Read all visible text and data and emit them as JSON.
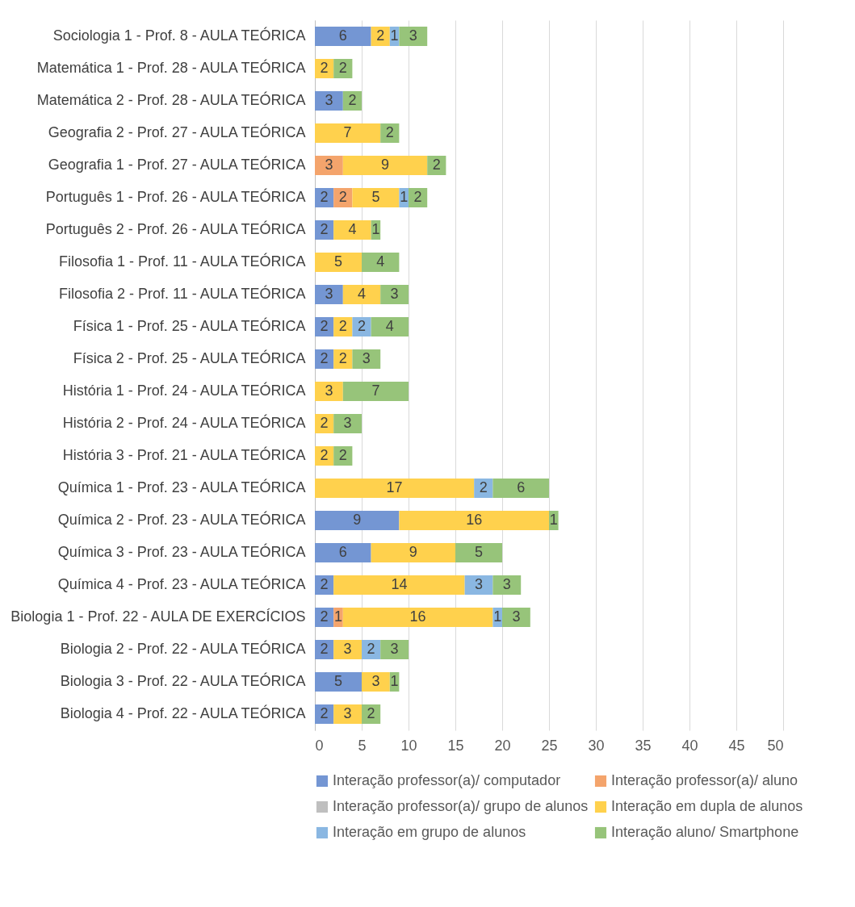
{
  "chart_data": {
    "type": "bar",
    "orientation": "horizontal",
    "stacked": true,
    "data_labels": true,
    "grid": "x",
    "legend": "bottom",
    "categories": [
      "Sociologia 1 - Prof. 8 - AULA TEÓRICA",
      "Matemática 1 - Prof. 28 - AULA TEÓRICA",
      "Matemática 2 - Prof. 28 - AULA TEÓRICA",
      "Geografia 2 - Prof. 27 - AULA TEÓRICA",
      "Geografia 1 - Prof. 27 - AULA TEÓRICA",
      "Português 1 - Prof. 26 - AULA TEÓRICA",
      "Português 2 - Prof. 26 - AULA TEÓRICA",
      "Filosofia 1 - Prof. 11 - AULA TEÓRICA",
      "Filosofia 2 - Prof. 11 - AULA TEÓRICA",
      "Física 1 - Prof. 25 - AULA TEÓRICA",
      "Física 2 - Prof. 25 - AULA TEÓRICA",
      "História 1 - Prof. 24 - AULA TEÓRICA",
      "História 2 - Prof. 24 - AULA TEÓRICA",
      "História 3 - Prof. 21 - AULA TEÓRICA",
      "Química 1 - Prof. 23 - AULA TEÓRICA",
      "Química 2 - Prof. 23 - AULA TEÓRICA",
      "Química 3 - Prof. 23 - AULA TEÓRICA",
      "Química 4 - Prof. 23 - AULA TEÓRICA",
      "Biologia 1 - Prof. 22 - AULA DE EXERCÍCIOS",
      "Biologia 2 - Prof. 22 - AULA TEÓRICA",
      "Biologia 3 - Prof. 22 - AULA TEÓRICA",
      "Biologia 4 - Prof. 22 - AULA TEÓRICA"
    ],
    "xlim": [
      0,
      50
    ],
    "xticks": [
      0,
      5,
      10,
      15,
      20,
      25,
      30,
      35,
      40,
      45,
      50
    ],
    "series": [
      {
        "name": "Interação professor(a)/ computador",
        "color": "#7496d3",
        "values": [
          6,
          null,
          3,
          null,
          null,
          2,
          2,
          null,
          3,
          2,
          2,
          null,
          null,
          null,
          null,
          9,
          6,
          2,
          2,
          2,
          5,
          2
        ]
      },
      {
        "name": "Interação professor(a)/ aluno",
        "color": "#f4a46c",
        "values": [
          null,
          null,
          null,
          null,
          3,
          2,
          null,
          null,
          null,
          null,
          null,
          null,
          null,
          null,
          null,
          null,
          null,
          null,
          1,
          null,
          null,
          null
        ]
      },
      {
        "name": "Interação professor(a)/ grupo de alunos",
        "color": "#bfbfbf",
        "values": [
          null,
          null,
          null,
          null,
          null,
          null,
          null,
          null,
          null,
          null,
          null,
          null,
          null,
          null,
          null,
          null,
          null,
          null,
          null,
          null,
          null,
          null
        ]
      },
      {
        "name": "Interação em dupla de alunos",
        "color": "#ffd14d",
        "values": [
          2,
          2,
          null,
          7,
          9,
          5,
          4,
          5,
          4,
          2,
          2,
          3,
          2,
          2,
          17,
          16,
          9,
          14,
          16,
          3,
          3,
          3
        ]
      },
      {
        "name": "Interação em grupo de alunos",
        "color": "#8ab7e2",
        "values": [
          1,
          null,
          null,
          null,
          null,
          1,
          null,
          null,
          null,
          2,
          null,
          null,
          null,
          null,
          2,
          null,
          null,
          3,
          1,
          2,
          null,
          null
        ]
      },
      {
        "name": "Interação aluno/ Smartphone",
        "color": "#97c47a",
        "values": [
          3,
          2,
          2,
          2,
          2,
          2,
          1,
          4,
          3,
          4,
          3,
          7,
          3,
          2,
          6,
          1,
          5,
          3,
          3,
          3,
          1,
          2
        ]
      }
    ]
  }
}
